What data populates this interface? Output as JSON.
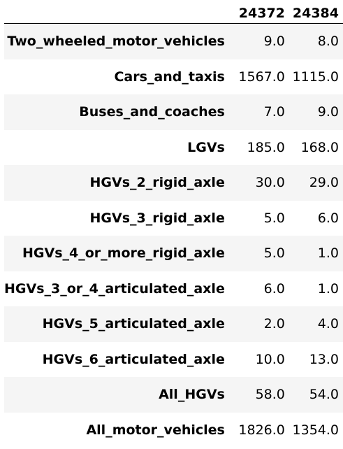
{
  "table": {
    "columns": [
      "24372",
      "24384"
    ],
    "rows": [
      {
        "index": "Two_wheeled_motor_vehicles",
        "values": [
          "9.0",
          "8.0"
        ]
      },
      {
        "index": "Cars_and_taxis",
        "values": [
          "1567.0",
          "1115.0"
        ]
      },
      {
        "index": "Buses_and_coaches",
        "values": [
          "7.0",
          "9.0"
        ]
      },
      {
        "index": "LGVs",
        "values": [
          "185.0",
          "168.0"
        ]
      },
      {
        "index": "HGVs_2_rigid_axle",
        "values": [
          "30.0",
          "29.0"
        ]
      },
      {
        "index": "HGVs_3_rigid_axle",
        "values": [
          "5.0",
          "6.0"
        ]
      },
      {
        "index": "HGVs_4_or_more_rigid_axle",
        "values": [
          "5.0",
          "1.0"
        ]
      },
      {
        "index": "HGVs_3_or_4_articulated_axle",
        "values": [
          "6.0",
          "1.0"
        ]
      },
      {
        "index": "HGVs_5_articulated_axle",
        "values": [
          "2.0",
          "4.0"
        ]
      },
      {
        "index": "HGVs_6_articulated_axle",
        "values": [
          "10.0",
          "13.0"
        ]
      },
      {
        "index": "All_HGVs",
        "values": [
          "58.0",
          "54.0"
        ]
      },
      {
        "index": "All_motor_vehicles",
        "values": [
          "1826.0",
          "1354.0"
        ]
      }
    ]
  }
}
